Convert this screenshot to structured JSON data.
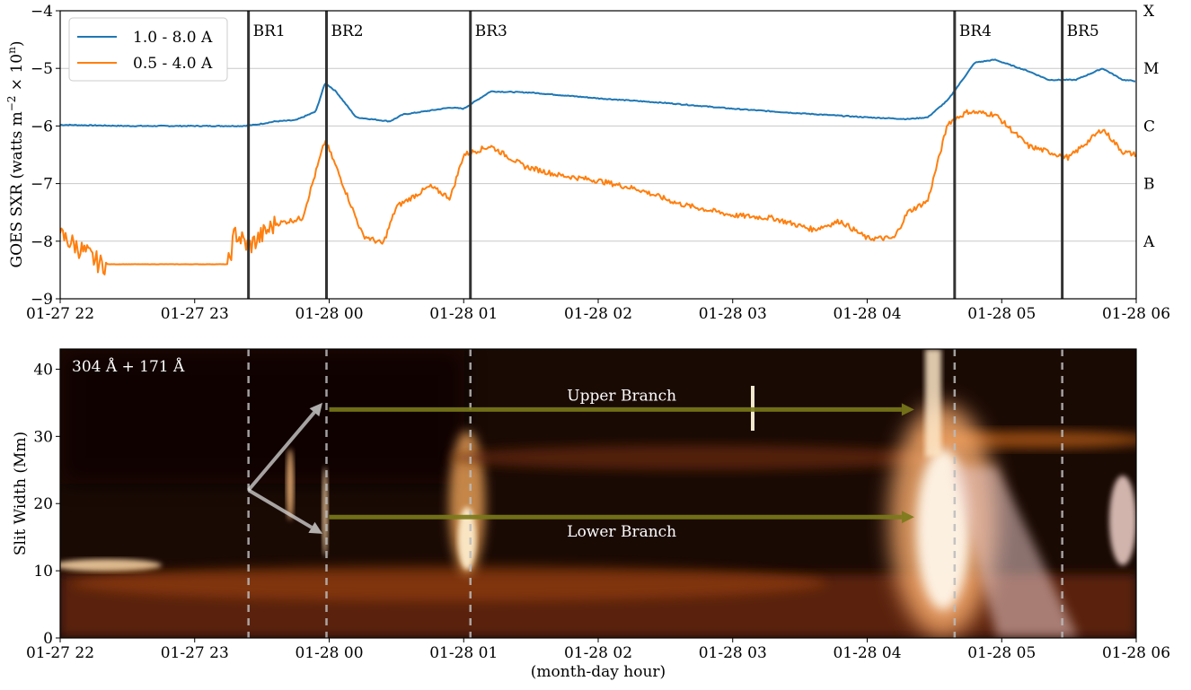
{
  "chart_data": [
    {
      "type": "line",
      "ylabel": "GOES SXR (watts m⁻² × 10ⁿ)",
      "ylabel_parts": {
        "main": "GOES SXR (watts m",
        "exp1": "−2",
        "mid": " × 10",
        "exp2": "n",
        "tail": ")"
      },
      "x_ticks": [
        "01-27 22",
        "01-27 23",
        "01-28 00",
        "01-28 01",
        "01-28 02",
        "01-28 03",
        "01-28 04",
        "01-28 05",
        "01-28 06"
      ],
      "x_range_hours": [
        0,
        8
      ],
      "ylim": [
        -9,
        -4
      ],
      "y_ticks": [
        "−4",
        "−5",
        "−6",
        "−7",
        "−8",
        "−9"
      ],
      "y_tick_values": [
        -4,
        -5,
        -6,
        -7,
        -8,
        -9
      ],
      "right_axis": {
        "labels": [
          "X",
          "M",
          "C",
          "B",
          "A"
        ],
        "values": [
          -4,
          -5,
          -6,
          -7,
          -8
        ]
      },
      "grid": "horizontal at class levels",
      "legend": {
        "position": "top-left"
      },
      "series": [
        {
          "name": "1.0 - 8.0 A",
          "color": "#1f77b4",
          "x_hours": [
            0,
            0.5,
            1.0,
            1.35,
            1.45,
            1.6,
            1.75,
            1.9,
            1.97,
            2.05,
            2.2,
            2.45,
            2.55,
            2.7,
            2.9,
            3.0,
            3.2,
            3.5,
            4.0,
            4.5,
            5.0,
            5.5,
            6.0,
            6.3,
            6.45,
            6.6,
            6.8,
            6.95,
            7.2,
            7.35,
            7.55,
            7.75,
            7.9,
            8.0
          ],
          "y_log": [
            -5.98,
            -6.0,
            -6.0,
            -6.0,
            -5.98,
            -5.92,
            -5.9,
            -5.75,
            -5.25,
            -5.4,
            -5.85,
            -5.92,
            -5.8,
            -5.75,
            -5.68,
            -5.7,
            -5.4,
            -5.42,
            -5.52,
            -5.6,
            -5.7,
            -5.78,
            -5.85,
            -5.88,
            -5.85,
            -5.55,
            -4.9,
            -4.85,
            -5.05,
            -5.2,
            -5.2,
            -5.0,
            -5.2,
            -5.22
          ]
        },
        {
          "name": "0.5 - 4.0 A",
          "color": "#ff7f0e",
          "x_hours": [
            0,
            0.1,
            0.3,
            0.8,
            1.25,
            1.3,
            1.4,
            1.5,
            1.6,
            1.8,
            1.97,
            2.05,
            2.25,
            2.4,
            2.5,
            2.75,
            2.9,
            3.0,
            3.2,
            3.45,
            3.7,
            4.0,
            4.3,
            4.6,
            5.0,
            5.3,
            5.6,
            5.8,
            6.0,
            6.2,
            6.3,
            6.45,
            6.6,
            6.75,
            6.95,
            7.2,
            7.35,
            7.5,
            7.75,
            7.9,
            8.0
          ],
          "y_log": [
            -7.9,
            -8.05,
            -8.4,
            -8.4,
            -8.4,
            -7.85,
            -8.1,
            -7.9,
            -7.7,
            -7.6,
            -6.25,
            -6.7,
            -7.9,
            -8.05,
            -7.4,
            -7.05,
            -7.25,
            -6.5,
            -6.35,
            -6.7,
            -6.85,
            -6.95,
            -7.1,
            -7.35,
            -7.55,
            -7.6,
            -7.8,
            -7.65,
            -7.95,
            -7.95,
            -7.5,
            -7.3,
            -5.95,
            -5.75,
            -5.8,
            -6.35,
            -6.45,
            -6.55,
            -6.05,
            -6.45,
            -6.5
          ]
        }
      ],
      "markers": [
        {
          "label": "BR1",
          "x_hours": 1.4
        },
        {
          "label": "BR2",
          "x_hours": 1.98
        },
        {
          "label": "BR3",
          "x_hours": 3.05
        },
        {
          "label": "BR4",
          "x_hours": 6.65
        },
        {
          "label": "BR5",
          "x_hours": 7.45
        }
      ]
    },
    {
      "type": "heatmap",
      "xlabel": "(month-day hour)",
      "ylabel": "Slit Width (Mm)",
      "ylim": [
        0,
        43
      ],
      "y_ticks": [
        "0",
        "10",
        "20",
        "30",
        "40"
      ],
      "y_tick_values": [
        0,
        10,
        20,
        30,
        40
      ],
      "x_ticks": [
        "01-27 22",
        "01-27 23",
        "01-28 00",
        "01-28 01",
        "01-28 02",
        "01-28 03",
        "01-28 04",
        "01-28 05",
        "01-28 06"
      ],
      "x_range_hours": [
        0,
        8
      ],
      "label": "304 Å + 171 Å",
      "dashed_markers_hours": [
        1.4,
        1.98,
        3.05,
        6.65,
        7.45
      ],
      "annotations": [
        {
          "text": "Upper Branch",
          "arrow_from": [
            2.0,
            34
          ],
          "arrow_to": [
            6.35,
            34
          ]
        },
        {
          "text": "Lower Branch",
          "arrow_from": [
            2.0,
            18
          ],
          "arrow_to": [
            6.35,
            18
          ]
        }
      ],
      "pointer_origin": [
        1.4,
        22
      ],
      "pointer_targets": [
        [
          1.95,
          35
        ],
        [
          1.95,
          15.5
        ]
      ]
    }
  ]
}
